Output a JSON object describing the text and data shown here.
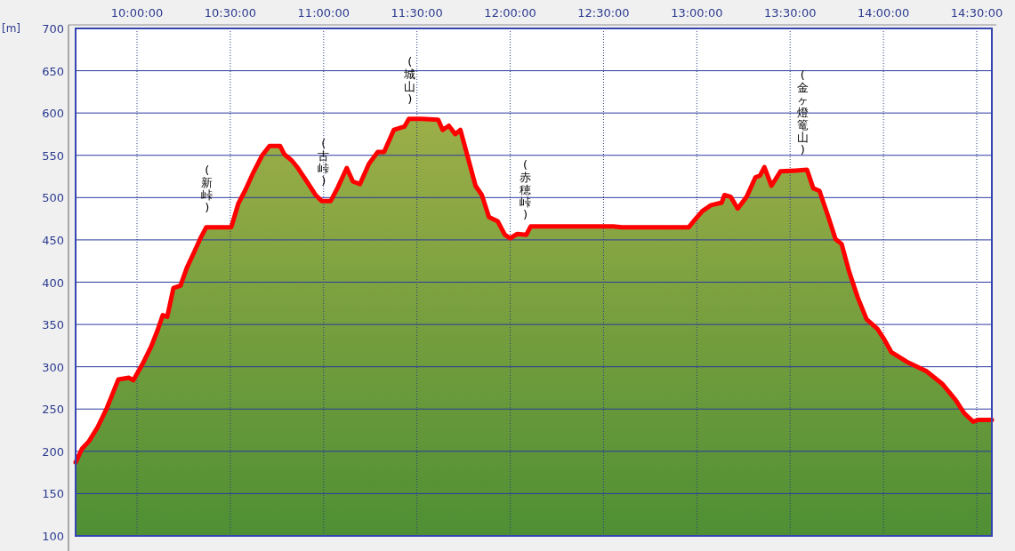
{
  "chart_data": {
    "type": "area",
    "ylabel": "[m]",
    "xlim": [
      9.671,
      14.581
    ],
    "xticks": [
      {
        "value": 10,
        "label": "10:00:00"
      },
      {
        "value": 10.5,
        "label": "10:30:00"
      },
      {
        "value": 11,
        "label": "11:00:00"
      },
      {
        "value": 11.5,
        "label": "11:30:00"
      },
      {
        "value": 12,
        "label": "12:00:00"
      },
      {
        "value": 12.5,
        "label": "12:30:00"
      },
      {
        "value": 13,
        "label": "13:00:00"
      },
      {
        "value": 13.5,
        "label": "13:30:00"
      },
      {
        "value": 14,
        "label": "14:00:00"
      },
      {
        "value": 14.5,
        "label": "14:30:00"
      }
    ],
    "ylim": [
      100,
      700
    ],
    "yticks": [
      100,
      150,
      200,
      250,
      300,
      350,
      400,
      450,
      500,
      550,
      600,
      650,
      700
    ],
    "grid": true,
    "x": [
      9.671,
      9.705,
      9.743,
      9.79,
      9.838,
      9.862,
      9.9,
      9.957,
      9.98,
      10.029,
      10.076,
      10.11,
      10.138,
      10.162,
      10.195,
      10.233,
      10.267,
      10.305,
      10.338,
      10.371,
      10.433,
      10.505,
      10.543,
      10.581,
      10.624,
      10.671,
      10.71,
      10.767,
      10.79,
      10.829,
      10.862,
      10.91,
      10.957,
      10.99,
      11.038,
      11.076,
      11.124,
      11.157,
      11.195,
      11.243,
      11.29,
      11.324,
      11.376,
      11.433,
      11.457,
      11.529,
      11.614,
      11.638,
      11.671,
      11.705,
      11.733,
      11.776,
      11.814,
      11.848,
      11.886,
      11.933,
      11.971,
      12.0,
      12.038,
      12.086,
      12.11,
      12.314,
      12.552,
      12.6,
      12.957,
      12.99,
      13.029,
      13.076,
      13.133,
      13.148,
      13.181,
      13.219,
      13.267,
      13.314,
      13.338,
      13.362,
      13.4,
      13.448,
      13.529,
      13.59,
      13.624,
      13.657,
      13.705,
      13.743,
      13.776,
      13.814,
      13.862,
      13.91,
      13.967,
      14.005,
      14.043,
      14.124,
      14.171,
      14.229,
      14.314,
      14.386,
      14.433,
      14.481,
      14.505,
      14.581
    ],
    "series": [
      {
        "color": "#ff0000",
        "values": [
          187,
          203,
          212,
          229,
          251,
          264,
          285,
          287,
          284,
          303,
          324,
          343,
          361,
          359,
          393,
          396,
          417,
          435,
          451,
          465,
          465,
          465,
          493,
          509,
          530,
          550,
          561,
          561,
          551,
          544,
          535,
          519,
          503,
          496,
          496,
          512,
          535,
          519,
          516,
          540,
          554,
          554,
          580,
          584,
          593,
          593,
          592,
          580,
          585,
          575,
          580,
          545,
          514,
          503,
          477,
          472,
          456,
          452,
          457,
          456,
          466,
          466,
          466,
          465,
          465,
          474,
          484,
          491,
          494,
          503,
          501,
          487,
          501,
          524,
          526,
          536,
          514,
          531,
          532,
          533,
          511,
          508,
          477,
          451,
          445,
          414,
          382,
          356,
          345,
          332,
          317,
          306,
          301,
          295,
          280,
          261,
          245,
          235,
          237,
          237
        ]
      }
    ],
    "annotations": [
      {
        "text": "(新峠)",
        "x": 10.376,
        "y": 465
      },
      {
        "text": "(古峠)",
        "x": 11.0,
        "y": 496
      },
      {
        "text": "(城山)",
        "x": 11.462,
        "y": 593
      },
      {
        "text": "(赤穂峠)",
        "x": 12.081,
        "y": 456
      },
      {
        "text": "(金ヶ燈篭山)",
        "x": 13.567,
        "y": 533
      }
    ]
  }
}
